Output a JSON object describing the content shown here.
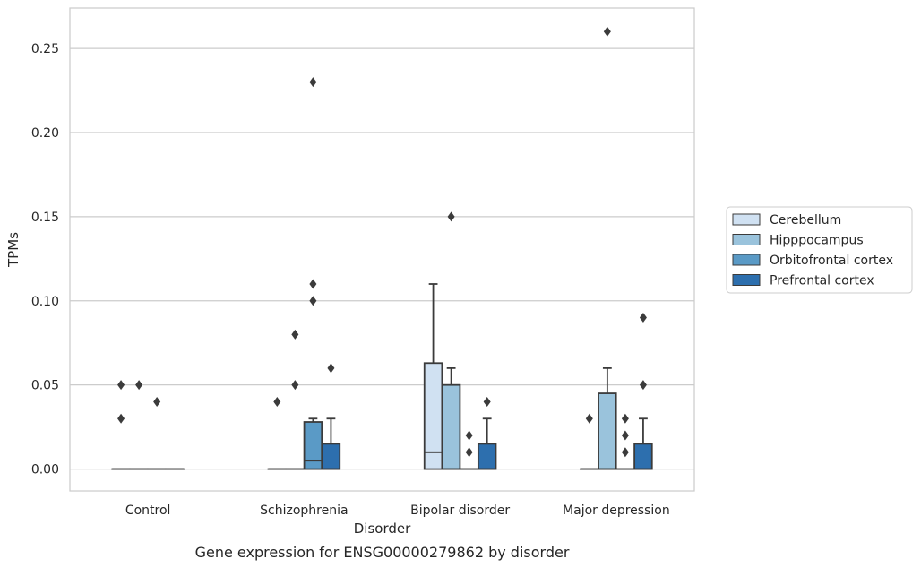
{
  "chart_data": {
    "type": "box",
    "title": "",
    "caption": "Gene expression for ENSG00000279862 by disorder",
    "xlabel": "Disorder",
    "ylabel": "TPMs",
    "ylim": [
      -0.013,
      0.274
    ],
    "yticks": [
      "0.00",
      "0.05",
      "0.10",
      "0.15",
      "0.20",
      "0.25"
    ],
    "grid": "horizontal",
    "legend_position": "right",
    "categories": [
      "Control",
      "Schizophrenia",
      "Bipolar disorder",
      "Major depression"
    ],
    "series": [
      {
        "name": "Cerebellum",
        "color": "#d0e1f2",
        "boxes": [
          {
            "q1": 0,
            "median": 0,
            "q3": 0,
            "whisker_low": 0,
            "whisker_high": 0,
            "outliers": [
              0.03,
              0.05
            ]
          },
          {
            "q1": 0,
            "median": 0,
            "q3": 0,
            "whisker_low": 0,
            "whisker_high": 0,
            "outliers": [
              0.04
            ]
          },
          {
            "q1": 0,
            "median": 0.01,
            "q3": 0.063,
            "whisker_low": 0,
            "whisker_high": 0.11,
            "outliers": []
          },
          {
            "q1": 0,
            "median": 0,
            "q3": 0,
            "whisker_low": 0,
            "whisker_high": 0,
            "outliers": [
              0.03
            ]
          }
        ]
      },
      {
        "name": "Hipppocampus",
        "color": "#9ac3dc",
        "boxes": [
          {
            "q1": 0,
            "median": 0,
            "q3": 0,
            "whisker_low": 0,
            "whisker_high": 0,
            "outliers": [
              0.05
            ]
          },
          {
            "q1": 0,
            "median": 0,
            "q3": 0,
            "whisker_low": 0,
            "whisker_high": 0,
            "outliers": [
              0.05,
              0.08
            ]
          },
          {
            "q1": 0,
            "median": 0,
            "q3": 0.05,
            "whisker_low": 0,
            "whisker_high": 0.06,
            "outliers": [
              0.15
            ]
          },
          {
            "q1": 0,
            "median": 0,
            "q3": 0.045,
            "whisker_low": 0,
            "whisker_high": 0.06,
            "outliers": [
              0.26
            ]
          }
        ]
      },
      {
        "name": "Orbitofrontal cortex",
        "color": "#5a9ac6",
        "boxes": [
          {
            "q1": 0,
            "median": 0,
            "q3": 0,
            "whisker_low": 0,
            "whisker_high": 0,
            "outliers": [
              0.04
            ]
          },
          {
            "q1": 0,
            "median": 0.005,
            "q3": 0.028,
            "whisker_low": 0,
            "whisker_high": 0.03,
            "outliers": [
              0.1,
              0.11,
              0.23
            ]
          },
          {
            "q1": 0,
            "median": 0,
            "q3": 0,
            "whisker_low": 0,
            "whisker_high": 0,
            "outliers": [
              0.01,
              0.02
            ]
          },
          {
            "q1": 0,
            "median": 0,
            "q3": 0,
            "whisker_low": 0,
            "whisker_high": 0,
            "outliers": [
              0.01,
              0.02,
              0.03
            ]
          }
        ]
      },
      {
        "name": "Prefrontal cortex",
        "color": "#2d6fae",
        "boxes": [
          {
            "q1": 0,
            "median": 0,
            "q3": 0,
            "whisker_low": 0,
            "whisker_high": 0,
            "outliers": []
          },
          {
            "q1": 0,
            "median": 0,
            "q3": 0.015,
            "whisker_low": 0,
            "whisker_high": 0.03,
            "outliers": [
              0.06
            ]
          },
          {
            "q1": 0,
            "median": 0,
            "q3": 0.015,
            "whisker_low": 0,
            "whisker_high": 0.03,
            "outliers": [
              0.04
            ]
          },
          {
            "q1": 0,
            "median": 0,
            "q3": 0.015,
            "whisker_low": 0,
            "whisker_high": 0.03,
            "outliers": [
              0.05,
              0.09
            ]
          }
        ]
      }
    ]
  }
}
